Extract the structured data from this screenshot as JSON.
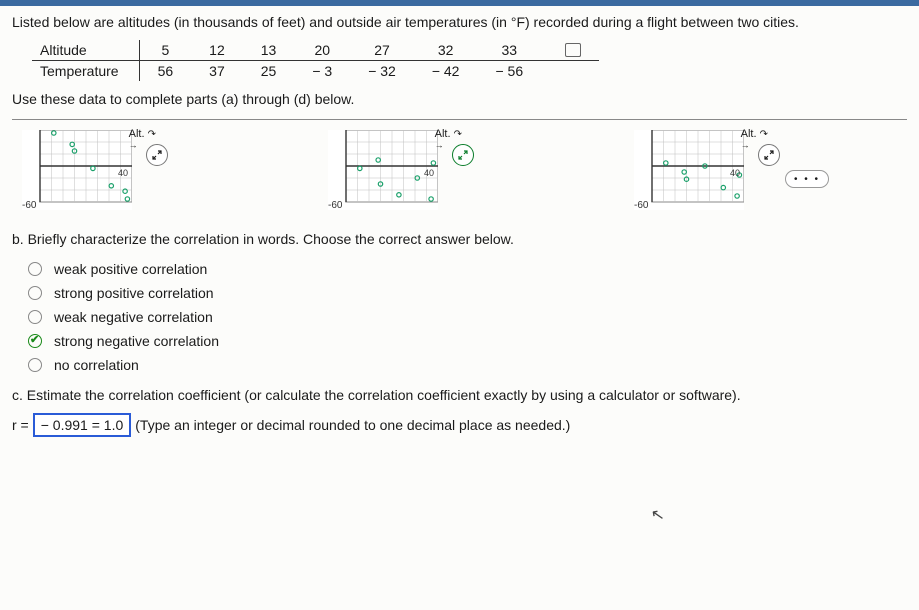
{
  "intro": "Listed below are altitudes (in thousands of feet) and outside air temperatures (in °F) recorded during a flight between two cities.",
  "table": {
    "row1_label": "Altitude",
    "row2_label": "Temperature",
    "altitudes": [
      "5",
      "12",
      "13",
      "20",
      "27",
      "32",
      "33"
    ],
    "temps": [
      "56",
      "37",
      "25",
      "− 3",
      "− 32",
      "− 42",
      "− 56"
    ]
  },
  "instruction": "Use these data to complete parts (a) through (d) below.",
  "charts": {
    "y_min_label": "-60",
    "x_max_label": "40",
    "axis_label": "Alt.",
    "grid": {
      "bg": "#ffffff",
      "line": "#bfbfbf",
      "border": "#555"
    },
    "points_color": "#1aa06a",
    "axis_color": "#333",
    "plots": [
      {
        "points": [
          [
            6,
            55
          ],
          [
            14,
            36
          ],
          [
            15,
            25
          ],
          [
            23,
            -4
          ],
          [
            31,
            -33
          ],
          [
            37,
            -42
          ],
          [
            38,
            -55
          ]
        ],
        "w": 110,
        "h": 80
      },
      {
        "points": [
          [
            6,
            -4
          ],
          [
            14,
            10
          ],
          [
            15,
            -30
          ],
          [
            23,
            -48
          ],
          [
            31,
            -20
          ],
          [
            37,
            -55
          ],
          [
            38,
            5
          ]
        ],
        "w": 110,
        "h": 80
      },
      {
        "points": [
          [
            6,
            5
          ],
          [
            14,
            -10
          ],
          [
            15,
            -22
          ],
          [
            23,
            0
          ],
          [
            31,
            -36
          ],
          [
            37,
            -50
          ],
          [
            38,
            -15
          ]
        ],
        "w": 110,
        "h": 80
      }
    ],
    "ylim": [
      -60,
      60
    ],
    "xlim": [
      0,
      40
    ]
  },
  "partB": {
    "prompt": "b. Briefly characterize the correlation in words. Choose the correct answer below.",
    "options": [
      "weak positive correlation",
      "strong positive correlation",
      "weak negative correlation",
      "strong negative correlation",
      "no correlation"
    ],
    "selected_index": 3
  },
  "partC": {
    "prompt": "c. Estimate the correlation coefficient (or calculate the correlation coefficient exactly by using a calculator or software).",
    "prefix": "r =",
    "answer": "− 0.991 = 1.0",
    "suffix": "(Type an integer or decimal rounded to one decimal place as needed.)"
  },
  "more": "• • •"
}
